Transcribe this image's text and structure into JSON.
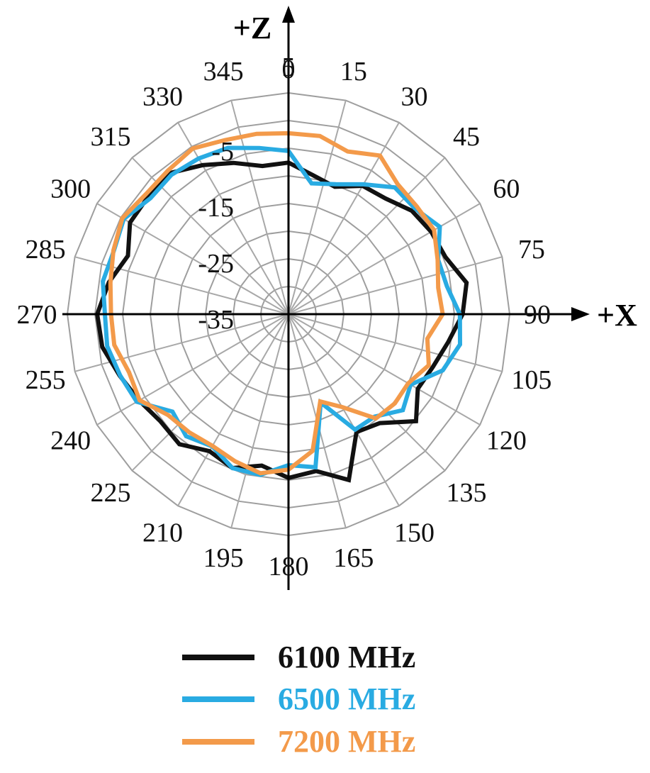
{
  "chart_data": {
    "type": "polar-line",
    "radial_axis": {
      "min": -35,
      "max": 5,
      "ring_step": 5,
      "tick_labels": [
        "5",
        "-5",
        "-15",
        "-25",
        "-35"
      ],
      "tick_values": [
        5,
        -5,
        -15,
        -25,
        -35
      ]
    },
    "angular_axis": {
      "step": 15,
      "labels": [
        "0",
        "15",
        "30",
        "45",
        "60",
        "75",
        "90",
        "105",
        "120",
        "135",
        "150",
        "165",
        "180",
        "195",
        "210",
        "225",
        "240",
        "255",
        "270",
        "285",
        "300",
        "315",
        "330",
        "345"
      ],
      "values": [
        0,
        15,
        30,
        45,
        60,
        75,
        90,
        105,
        120,
        135,
        150,
        165,
        180,
        195,
        210,
        225,
        240,
        255,
        270,
        285,
        300,
        315,
        330,
        345
      ]
    },
    "axes": {
      "z_label": "+Z",
      "x_label": "+X"
    },
    "series": [
      {
        "name": "6100 MHz",
        "color": "#111111",
        "points": [
          [
            0,
            -7.6
          ],
          [
            10,
            -9.5
          ],
          [
            20,
            -10.5
          ],
          [
            30,
            -8.2
          ],
          [
            40,
            -7.7
          ],
          [
            50,
            -5.9
          ],
          [
            60,
            -5.2
          ],
          [
            70,
            -4.8
          ],
          [
            80,
            -2.3
          ],
          [
            90,
            -3.5
          ],
          [
            100,
            -5.7
          ],
          [
            110,
            -7.2
          ],
          [
            120,
            -8.0
          ],
          [
            130,
            -4.9
          ],
          [
            140,
            -9.3
          ],
          [
            150,
            -10.4
          ],
          [
            160,
            -3.1
          ],
          [
            170,
            -6.2
          ],
          [
            180,
            -5.4
          ],
          [
            190,
            -7.2
          ],
          [
            200,
            -5.4
          ],
          [
            210,
            -6.4
          ],
          [
            220,
            -4.3
          ],
          [
            230,
            -4.8
          ],
          [
            240,
            -3.8
          ],
          [
            250,
            -2.5
          ],
          [
            260,
            -0.8
          ],
          [
            270,
            -0.4
          ],
          [
            280,
            -2.0
          ],
          [
            290,
            -4.1
          ],
          [
            300,
            -1.9
          ],
          [
            310,
            -1.9
          ],
          [
            320,
            -1.7
          ],
          [
            330,
            -3.9
          ],
          [
            340,
            -5.9
          ],
          [
            350,
            -7.8
          ]
        ]
      },
      {
        "name": "6500 MHz",
        "color": "#29abe2",
        "points": [
          [
            0,
            -5.5
          ],
          [
            10,
            -11.0
          ],
          [
            20,
            -10.0
          ],
          [
            30,
            -7.9
          ],
          [
            40,
            -5.1
          ],
          [
            50,
            -5.2
          ],
          [
            60,
            -3.4
          ],
          [
            70,
            -6.2
          ],
          [
            80,
            -5.9
          ],
          [
            90,
            -4.0
          ],
          [
            100,
            -3.5
          ],
          [
            110,
            -5.3
          ],
          [
            120,
            -9.5
          ],
          [
            130,
            -8.0
          ],
          [
            140,
            -10.8
          ],
          [
            150,
            -10.9
          ],
          [
            160,
            -18.0
          ],
          [
            170,
            -6.9
          ],
          [
            180,
            -7.7
          ],
          [
            190,
            -5.5
          ],
          [
            200,
            -5.4
          ],
          [
            210,
            -7.4
          ],
          [
            220,
            -6.2
          ],
          [
            230,
            -7.6
          ],
          [
            240,
            -3.3
          ],
          [
            250,
            -2.6
          ],
          [
            260,
            -1.7
          ],
          [
            270,
            -1.8
          ],
          [
            280,
            -0.9
          ],
          [
            290,
            -1.4
          ],
          [
            300,
            -0.6
          ],
          [
            310,
            -2.4
          ],
          [
            320,
            -2.1
          ],
          [
            330,
            -2.5
          ],
          [
            340,
            -3.0
          ],
          [
            350,
            -4.5
          ]
        ]
      },
      {
        "name": "7200 MHz",
        "color": "#f39a4a",
        "points": [
          [
            0,
            -2.3
          ],
          [
            10,
            -2.3
          ],
          [
            20,
            -3.7
          ],
          [
            30,
            -1.9
          ],
          [
            40,
            -4.3
          ],
          [
            50,
            -4.7
          ],
          [
            60,
            -4.6
          ],
          [
            70,
            -6.3
          ],
          [
            80,
            -7.5
          ],
          [
            90,
            -7.1
          ],
          [
            100,
            -9.5
          ],
          [
            110,
            -8.0
          ],
          [
            120,
            -10.0
          ],
          [
            130,
            -9.9
          ],
          [
            140,
            -10.4
          ],
          [
            150,
            -15.6
          ],
          [
            160,
            -18.2
          ],
          [
            170,
            -9.9
          ],
          [
            180,
            -6.9
          ],
          [
            190,
            -5.8
          ],
          [
            200,
            -6.7
          ],
          [
            210,
            -7.5
          ],
          [
            220,
            -7.1
          ],
          [
            230,
            -6.6
          ],
          [
            240,
            -3.9
          ],
          [
            250,
            -4.3
          ],
          [
            260,
            -3.0
          ],
          [
            270,
            -2.9
          ],
          [
            280,
            -2.3
          ],
          [
            290,
            -1.3
          ],
          [
            300,
            -0.3
          ],
          [
            310,
            -1.3
          ],
          [
            320,
            -1.1
          ],
          [
            330,
            -0.4
          ],
          [
            340,
            -1.5
          ],
          [
            350,
            -1.9
          ]
        ]
      }
    ],
    "legend": {
      "position": "bottom"
    }
  }
}
